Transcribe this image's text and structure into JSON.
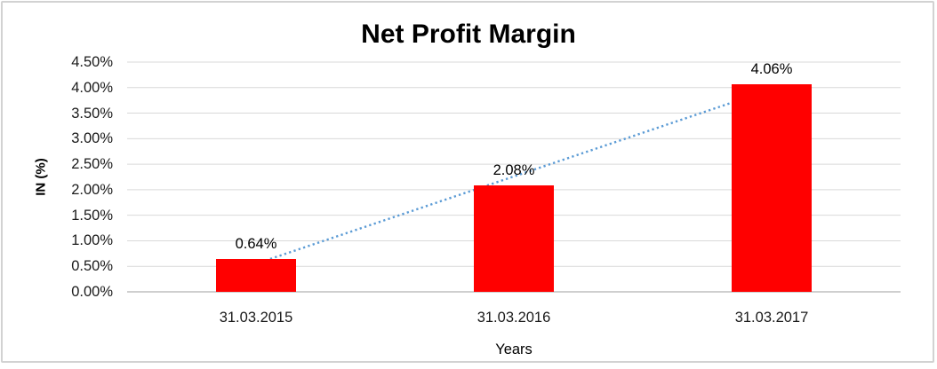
{
  "window": {
    "background": "#ffffff",
    "border_color": "#d2d2d2"
  },
  "chart_data": {
    "type": "bar",
    "title": "Net Profit Margin",
    "xlabel": "Years",
    "ylabel": "IN (%)",
    "categories": [
      "31.03.2015",
      "31.03.2016",
      "31.03.2017"
    ],
    "values": [
      0.64,
      2.08,
      4.06
    ],
    "data_labels": [
      "0.64%",
      "2.08%",
      "4.06%"
    ],
    "yticks": [
      "0.00%",
      "0.50%",
      "1.00%",
      "1.50%",
      "2.00%",
      "2.50%",
      "3.00%",
      "3.50%",
      "4.00%",
      "4.50%"
    ],
    "ylim": [
      0,
      4.5
    ],
    "ytick_step": 0.5,
    "grid": true,
    "legend": "none",
    "bar_color": "#ff0000",
    "gridline_color": "#d9d9d9",
    "axis_line_color": "#bfbfbf",
    "text_color": "#000000",
    "trendline": {
      "type": "linear",
      "style": "dotted",
      "color": "#5b9bd5",
      "start_value_pct": 0.55,
      "end_value_pct": 3.97
    }
  }
}
